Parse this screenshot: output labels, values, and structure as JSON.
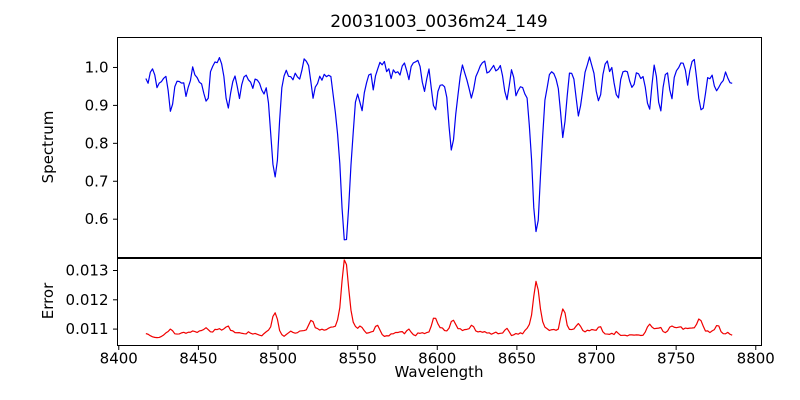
{
  "figure": {
    "title": "20031003_0036m24_149",
    "background": "#ffffff",
    "axis_color": "#000000"
  },
  "chart_data": {
    "type": "line",
    "title": "20031003_0036m24_149",
    "xlabel": "Wavelength",
    "xlim": [
      8399.2,
      8803.6
    ],
    "xticks": [
      8400,
      8450,
      8500,
      8550,
      8600,
      8650,
      8700,
      8750,
      8800
    ],
    "xtick_labels": [
      "8400",
      "8450",
      "8500",
      "8550",
      "8600",
      "8650",
      "8700",
      "8750",
      "8800"
    ],
    "x_data_range": [
      8417,
      8786
    ],
    "sample_step": 1.4,
    "grid": false,
    "legend": "none",
    "panels": [
      {
        "name": "spectrum",
        "ylabel": "Spectrum",
        "color": "#0000f0",
        "ylim": [
          0.499,
          1.079
        ],
        "yticks": [
          0.6,
          0.7,
          0.8,
          0.9,
          1.0
        ],
        "ytick_labels": [
          "0.6",
          "0.7",
          "0.8",
          "0.9",
          "1.0"
        ],
        "baseline": 0.988,
        "noise_sigma": 0.022,
        "noise_seed": 7,
        "wave": {
          "amp": 0.013,
          "period": 57,
          "phase": 1.0
        },
        "feature_sign": -1,
        "features": [
          {
            "c": 8424.0,
            "a": 0.035,
            "s": 1.2
          },
          {
            "c": 8433.0,
            "a": 0.08,
            "s": 1.5
          },
          {
            "c": 8443.0,
            "a": 0.055,
            "s": 1.3
          },
          {
            "c": 8455.0,
            "a": 0.095,
            "s": 1.5
          },
          {
            "c": 8468.0,
            "a": 0.115,
            "s": 1.6
          },
          {
            "c": 8476.0,
            "a": 0.04,
            "s": 1.2
          },
          {
            "c": 8484.0,
            "a": 0.05,
            "s": 1.3
          },
          {
            "c": 8498.0,
            "a": 0.235,
            "s": 2.2
          },
          {
            "c": 8498.0,
            "a": 0.025,
            "s": 7.0
          },
          {
            "c": 8508.0,
            "a": 0.035,
            "s": 1.2
          },
          {
            "c": 8514.0,
            "a": 0.05,
            "s": 1.3
          },
          {
            "c": 8522.0,
            "a": 0.1,
            "s": 1.6
          },
          {
            "c": 8536.0,
            "a": 0.055,
            "s": 1.4
          },
          {
            "c": 8542.1,
            "a": 0.4,
            "s": 2.7
          },
          {
            "c": 8542.1,
            "a": 0.05,
            "s": 9.0
          },
          {
            "c": 8552.0,
            "a": 0.065,
            "s": 1.4
          },
          {
            "c": 8560.0,
            "a": 0.045,
            "s": 1.2
          },
          {
            "c": 8571.0,
            "a": 0.035,
            "s": 1.2
          },
          {
            "c": 8582.0,
            "a": 0.05,
            "s": 1.3
          },
          {
            "c": 8592.0,
            "a": 0.045,
            "s": 1.2
          },
          {
            "c": 8598.4,
            "a": 0.09,
            "s": 1.6
          },
          {
            "c": 8609.0,
            "a": 0.165,
            "s": 1.9
          },
          {
            "c": 8622.0,
            "a": 0.07,
            "s": 1.4
          },
          {
            "c": 8632.0,
            "a": 0.035,
            "s": 1.2
          },
          {
            "c": 8644.0,
            "a": 0.075,
            "s": 1.4
          },
          {
            "c": 8650.0,
            "a": 0.05,
            "s": 1.2
          },
          {
            "c": 8662.1,
            "a": 0.37,
            "s": 2.6
          },
          {
            "c": 8662.1,
            "a": 0.045,
            "s": 8.0
          },
          {
            "c": 8679.0,
            "a": 0.19,
            "s": 1.7
          },
          {
            "c": 8688.6,
            "a": 0.135,
            "s": 1.7
          },
          {
            "c": 8702.0,
            "a": 0.085,
            "s": 1.5
          },
          {
            "c": 8713.0,
            "a": 0.06,
            "s": 1.3
          },
          {
            "c": 8722.0,
            "a": 0.04,
            "s": 1.2
          },
          {
            "c": 8733.0,
            "a": 0.105,
            "s": 1.6
          },
          {
            "c": 8740.0,
            "a": 0.09,
            "s": 1.4
          },
          {
            "c": 8747.0,
            "a": 0.105,
            "s": 1.5
          },
          {
            "c": 8757.0,
            "a": 0.045,
            "s": 1.2
          },
          {
            "c": 8766.0,
            "a": 0.09,
            "s": 1.5
          },
          {
            "c": 8776.0,
            "a": 0.05,
            "s": 1.2
          }
        ]
      },
      {
        "name": "error",
        "ylabel": "Error",
        "color": "#f00000",
        "ylim": [
          0.01044,
          0.01341
        ],
        "yticks": [
          0.011,
          0.012,
          0.013
        ],
        "ytick_labels": [
          "0.011",
          "0.012",
          "0.013"
        ],
        "baseline": 0.0109,
        "noise_sigma": 6e-05,
        "noise_seed": 13,
        "wave": {
          "amp": 8e-05,
          "period": 73,
          "phase": 2.5
        },
        "feature_sign": 1,
        "features": [
          {
            "c": 8433.0,
            "a": 0.00012,
            "s": 1.4
          },
          {
            "c": 8455.0,
            "a": 0.00014,
            "s": 1.4
          },
          {
            "c": 8468.0,
            "a": 0.00016,
            "s": 1.4
          },
          {
            "c": 8498.0,
            "a": 0.00082,
            "s": 1.7
          },
          {
            "c": 8521.0,
            "a": 0.00034,
            "s": 1.4
          },
          {
            "c": 8542.1,
            "a": 0.00212,
            "s": 2.0
          },
          {
            "c": 8542.1,
            "a": 0.0003,
            "s": 6.0
          },
          {
            "c": 8552.0,
            "a": 0.00015,
            "s": 1.3
          },
          {
            "c": 8562.0,
            "a": 0.00024,
            "s": 1.3
          },
          {
            "c": 8582.0,
            "a": 0.00012,
            "s": 1.2
          },
          {
            "c": 8598.0,
            "a": 0.0004,
            "s": 1.5
          },
          {
            "c": 8610.0,
            "a": 0.00034,
            "s": 1.5
          },
          {
            "c": 8622.0,
            "a": 0.00015,
            "s": 1.3
          },
          {
            "c": 8644.0,
            "a": 0.00016,
            "s": 1.3
          },
          {
            "c": 8662.1,
            "a": 0.00152,
            "s": 1.8
          },
          {
            "c": 8662.1,
            "a": 0.00022,
            "s": 5.0
          },
          {
            "c": 8679.0,
            "a": 0.0007,
            "s": 1.5
          },
          {
            "c": 8688.6,
            "a": 0.00028,
            "s": 1.3
          },
          {
            "c": 8702.0,
            "a": 0.00016,
            "s": 1.3
          },
          {
            "c": 8713.0,
            "a": 0.00012,
            "s": 1.2
          },
          {
            "c": 8733.0,
            "a": 0.0002,
            "s": 1.3
          },
          {
            "c": 8740.0,
            "a": 0.00016,
            "s": 1.2
          },
          {
            "c": 8747.0,
            "a": 0.00022,
            "s": 1.3
          },
          {
            "c": 8757.0,
            "a": 0.00012,
            "s": 1.2
          },
          {
            "c": 8765.0,
            "a": 0.0004,
            "s": 1.5
          },
          {
            "c": 8776.0,
            "a": 0.00024,
            "s": 1.3
          }
        ]
      }
    ]
  }
}
